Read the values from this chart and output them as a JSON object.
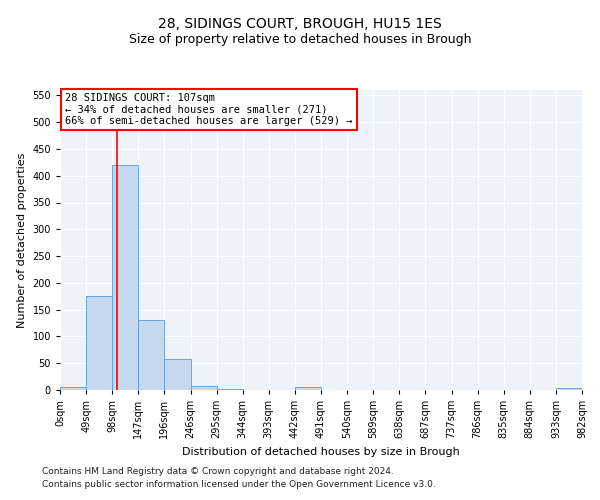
{
  "title": "28, SIDINGS COURT, BROUGH, HU15 1ES",
  "subtitle": "Size of property relative to detached houses in Brough",
  "xlabel": "Distribution of detached houses by size in Brough",
  "ylabel": "Number of detached properties",
  "bar_color": "#c5d8ed",
  "bar_edge_color": "#5b9bd5",
  "bin_labels": [
    "0sqm",
    "49sqm",
    "98sqm",
    "147sqm",
    "196sqm",
    "246sqm",
    "295sqm",
    "344sqm",
    "393sqm",
    "442sqm",
    "491sqm",
    "540sqm",
    "589sqm",
    "638sqm",
    "687sqm",
    "737sqm",
    "786sqm",
    "835sqm",
    "884sqm",
    "933sqm",
    "982sqm"
  ],
  "bar_values": [
    5,
    175,
    420,
    130,
    57,
    7,
    2,
    0,
    0,
    5,
    0,
    0,
    0,
    0,
    0,
    0,
    0,
    0,
    0,
    3
  ],
  "ylim": [
    0,
    560
  ],
  "yticks": [
    0,
    50,
    100,
    150,
    200,
    250,
    300,
    350,
    400,
    450,
    500,
    550
  ],
  "property_line_x": 2.18,
  "annotation_text": "28 SIDINGS COURT: 107sqm\n← 34% of detached houses are smaller (271)\n66% of semi-detached houses are larger (529) →",
  "annotation_box_color": "#ffffff",
  "annotation_border_color": "#ff0000",
  "property_line_color": "#ff0000",
  "footnote1": "Contains HM Land Registry data © Crown copyright and database right 2024.",
  "footnote2": "Contains public sector information licensed under the Open Government Licence v3.0.",
  "background_color": "#eef2f9",
  "grid_color": "#ffffff",
  "title_fontsize": 10,
  "subtitle_fontsize": 9,
  "axis_label_fontsize": 8,
  "tick_fontsize": 7,
  "annotation_fontsize": 7.5,
  "footnote_fontsize": 6.5
}
